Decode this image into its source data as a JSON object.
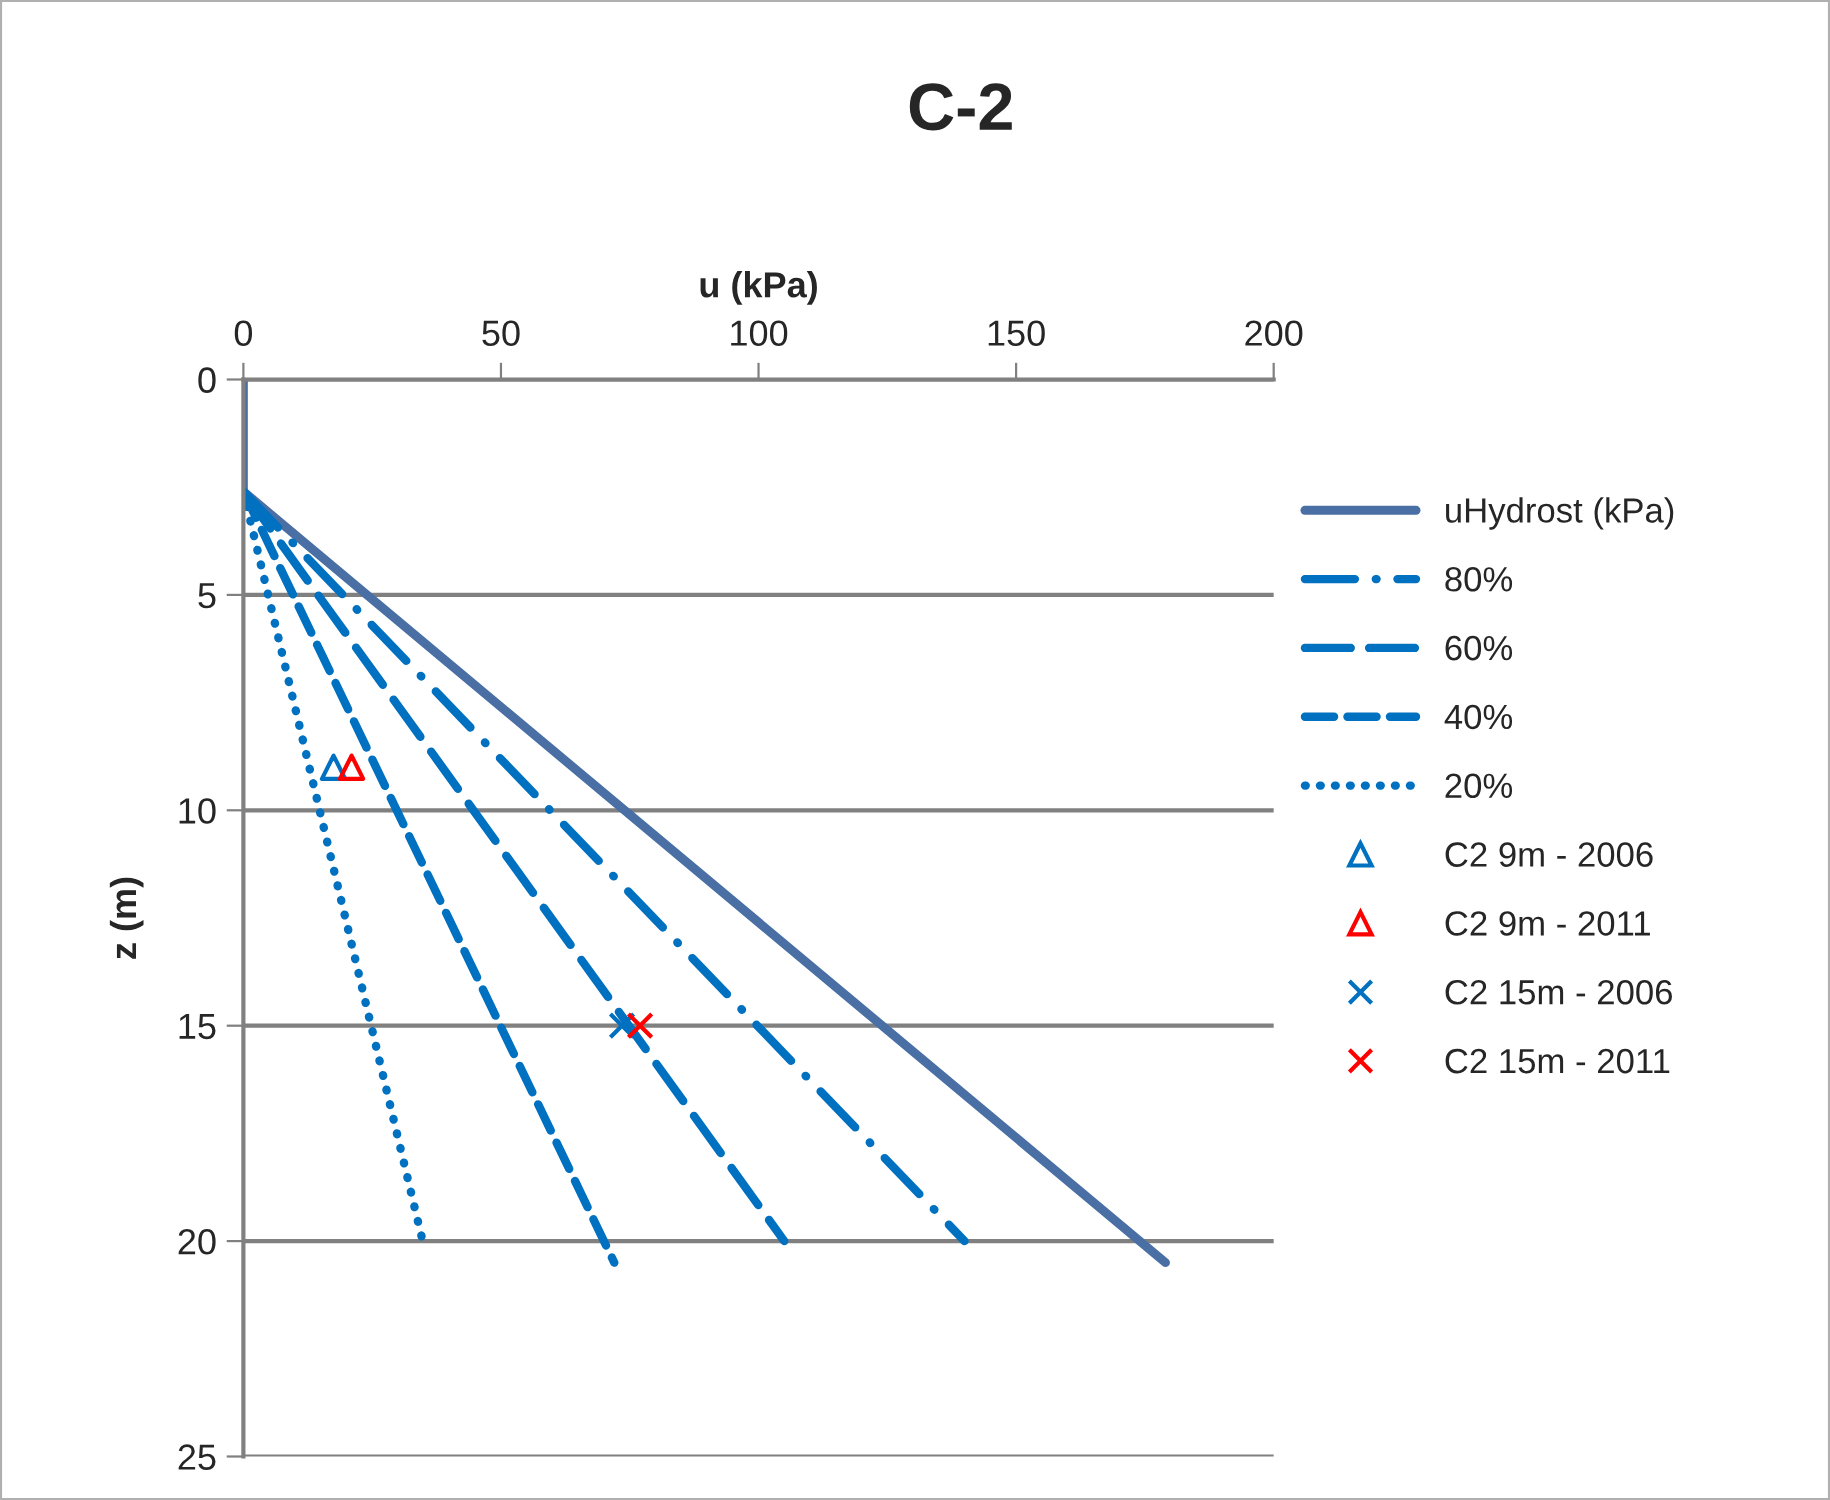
{
  "chart_data": {
    "type": "line",
    "title": "C-2",
    "xlabel": "u (kPa)",
    "ylabel": "z (m)",
    "xlim": [
      0,
      200
    ],
    "xticks": [
      0,
      50,
      100,
      150,
      200
    ],
    "ylim": [
      25,
      0
    ],
    "yticks": [
      0,
      5,
      10,
      15,
      20,
      25
    ],
    "grid": "y",
    "legend": "right",
    "series": [
      {
        "name": "uHydrost (kPa)",
        "color": "#4a6fa5",
        "line_style": "solid",
        "x": [
          0,
          0,
          179
        ],
        "values": [
          0,
          2.6,
          20.5
        ]
      },
      {
        "name": "80%",
        "color": "#0070c0",
        "line_style": "dashdot",
        "x": [
          0,
          140
        ],
        "values": [
          2.6,
          20.0
        ]
      },
      {
        "name": "60%",
        "color": "#0070c0",
        "line_style": "longdash",
        "x": [
          0,
          105
        ],
        "values": [
          2.6,
          20.0
        ]
      },
      {
        "name": "40%",
        "color": "#0070c0",
        "line_style": "dashed",
        "x": [
          0,
          72
        ],
        "values": [
          2.6,
          20.5
        ]
      },
      {
        "name": "20%",
        "color": "#0070c0",
        "line_style": "dotted",
        "x": [
          0,
          35
        ],
        "values": [
          2.6,
          20.1
        ]
      },
      {
        "name": "C2 9m - 2006",
        "type": "scatter",
        "marker": "triangle",
        "color": "#0070c0",
        "x": [
          17.5
        ],
        "values": [
          9
        ]
      },
      {
        "name": "C2 9m - 2011",
        "type": "scatter",
        "marker": "triangle",
        "color": "#ff0000",
        "x": [
          21
        ],
        "values": [
          9
        ]
      },
      {
        "name": "C2 15m - 2006",
        "type": "scatter",
        "marker": "cross",
        "color": "#0070c0",
        "x": [
          73.5
        ],
        "values": [
          15
        ]
      },
      {
        "name": "C2 15m - 2011",
        "type": "scatter",
        "marker": "cross",
        "color": "#ff0000",
        "x": [
          77
        ],
        "values": [
          15
        ]
      }
    ]
  }
}
